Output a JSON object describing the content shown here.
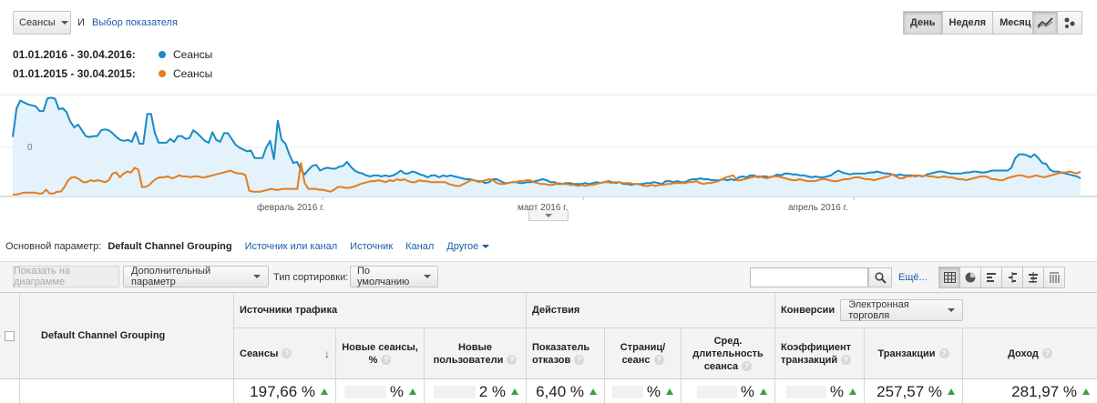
{
  "topbar": {
    "metric_select": "Сеансы",
    "and": "И",
    "choose_metric": "Выбор показателя",
    "periods": [
      "День",
      "Неделя",
      "Месяц"
    ],
    "active_period": "День",
    "view_icons": [
      "line-chart-icon",
      "motion-chart-icon"
    ]
  },
  "legend": [
    {
      "range": "01.01.2016 - 30.04.2016:",
      "label": "Сеансы",
      "color": "#1a8ac5"
    },
    {
      "range": "01.01.2015 - 30.04.2015:",
      "label": "Сеансы",
      "color": "#e47d1f"
    }
  ],
  "chart_data": {
    "type": "line",
    "y_tick_label": "0",
    "x_tick_labels": [
      "февраль 2016 г.",
      "март 2016 г.",
      "апрель 2016 г."
    ],
    "grid": true,
    "series": [
      {
        "name": "Сеансы",
        "color": "#1a8ac5",
        "fill": "#e3f2fb",
        "values": [
          62,
          92,
          100,
          98,
          96,
          95,
          94,
          89,
          89,
          102,
          103,
          102,
          91,
          92,
          88,
          78,
          72,
          75,
          69,
          63,
          62,
          63,
          63,
          69,
          70,
          69,
          66,
          62,
          59,
          58,
          59,
          57,
          67,
          55,
          55,
          86,
          86,
          66,
          56,
          56,
          56,
          60,
          57,
          63,
          63,
          60,
          61,
          69,
          66,
          62,
          58,
          56,
          67,
          59,
          57,
          66,
          66,
          60,
          54,
          51,
          49,
          47,
          48,
          40,
          40,
          40,
          51,
          58,
          39,
          79,
          59,
          55,
          44,
          35,
          36,
          28,
          23,
          28,
          32,
          33,
          27,
          29,
          30,
          29,
          29,
          31,
          32,
          36,
          31,
          27,
          25,
          24,
          22,
          21,
          22,
          22,
          21,
          22,
          21,
          22,
          24,
          27,
          24,
          24,
          26,
          25,
          23,
          22,
          20,
          22,
          22,
          20,
          22,
          21,
          22,
          21,
          20,
          19,
          18,
          18,
          17,
          16,
          16,
          14,
          15,
          18,
          18,
          16,
          14,
          14,
          15,
          15,
          14,
          14,
          15,
          15,
          16,
          17,
          18,
          17,
          15,
          15,
          13,
          13,
          14,
          14,
          13,
          13,
          13,
          14,
          13,
          14,
          15,
          14,
          15,
          16,
          15,
          14,
          15,
          13,
          13,
          12,
          13,
          13,
          13,
          14,
          14,
          15,
          14,
          13,
          16,
          16,
          15,
          16,
          15,
          15,
          17,
          18,
          18,
          19,
          18,
          18,
          17,
          17,
          17,
          18,
          17,
          18,
          17,
          20,
          21,
          20,
          22,
          22,
          20,
          21,
          21,
          20,
          21,
          23,
          22,
          24,
          24,
          23,
          23,
          22,
          22,
          21,
          20,
          21,
          20,
          20,
          21,
          22,
          25,
          27,
          25,
          24,
          23,
          24,
          24,
          24,
          24,
          25,
          25,
          26,
          25,
          24,
          24,
          23,
          22,
          23,
          22,
          22,
          22,
          21,
          22,
          21,
          23,
          24,
          25,
          26,
          26,
          25,
          24,
          24,
          24,
          24,
          25,
          25,
          26,
          26,
          25,
          25,
          26,
          27,
          27,
          27,
          27,
          27,
          30,
          40,
          44,
          44,
          43,
          41,
          44,
          40,
          35,
          34,
          28,
          26,
          26,
          25,
          24,
          23,
          22,
          21,
          19
        ]
      },
      {
        "name": "Сеансы",
        "color": "#e47d1f",
        "values": [
          2,
          2,
          3,
          4,
          4,
          4,
          4,
          3,
          3,
          7,
          3,
          3,
          5,
          5,
          10,
          17,
          20,
          20,
          18,
          15,
          15,
          17,
          16,
          17,
          16,
          15,
          17,
          24,
          25,
          20,
          24,
          26,
          25,
          30,
          28,
          10,
          10,
          12,
          16,
          19,
          20,
          20,
          21,
          19,
          20,
          22,
          21,
          21,
          20,
          21,
          21,
          20,
          20,
          21,
          22,
          23,
          24,
          25,
          26,
          27,
          25,
          24,
          24,
          22,
          6,
          5,
          5,
          5,
          6,
          7,
          8,
          7,
          7,
          8,
          8,
          8,
          8,
          8,
          35,
          14,
          8,
          8,
          8,
          7,
          7,
          6,
          5,
          7,
          10,
          10,
          9,
          9,
          10,
          11,
          13,
          14,
          15,
          16,
          16,
          17,
          16,
          15,
          17,
          16,
          18,
          17,
          18,
          16,
          15,
          15,
          17,
          16,
          16,
          15,
          15,
          15,
          15,
          15,
          13,
          12,
          11,
          11,
          13,
          15,
          17,
          17,
          15,
          16,
          17,
          18,
          17,
          14,
          13,
          13,
          14,
          15,
          15,
          16,
          16,
          17,
          17,
          15,
          14,
          13,
          13,
          12,
          12,
          13,
          14,
          13,
          13,
          12,
          12,
          11,
          12,
          11,
          12,
          12,
          13,
          14,
          15,
          15,
          14,
          15,
          15,
          14,
          14,
          14,
          13,
          13,
          12,
          11,
          11,
          12,
          11,
          12,
          12,
          13,
          13,
          14,
          14,
          14,
          14,
          15,
          15,
          16,
          14,
          13,
          14,
          14,
          15,
          16,
          18,
          20,
          21,
          22,
          17,
          17,
          18,
          19,
          20,
          21,
          21,
          20,
          19,
          20,
          21,
          21,
          20,
          19,
          18,
          17,
          17,
          18,
          17,
          16,
          16,
          16,
          17,
          18,
          18,
          17,
          16,
          16,
          17,
          18,
          18,
          19,
          20,
          20,
          19,
          18,
          18,
          17,
          18,
          19,
          20,
          21,
          23,
          21,
          19,
          19,
          21,
          21,
          22,
          22,
          21,
          22,
          21,
          21,
          20,
          20,
          21,
          20,
          20,
          19,
          18,
          18,
          17,
          18,
          19,
          20,
          21,
          21,
          20,
          18,
          18,
          17,
          17,
          19,
          20,
          21,
          22,
          22,
          21,
          20,
          21,
          22,
          21,
          20,
          21,
          22,
          23,
          24,
          25,
          25,
          26,
          25,
          24,
          26
        ]
      }
    ]
  },
  "dimension_bar": {
    "label": "Основной параметр:",
    "current": "Default Channel Grouping",
    "links": [
      "Источник или канал",
      "Источник",
      "Канал"
    ],
    "more": "Другое"
  },
  "toolbar": {
    "plot_rows": "Показать на диаграмме",
    "secondary_dim": "Дополнительный параметр",
    "sort_label": "Тип сортировки:",
    "sort_value": "По умолчанию",
    "search_value": "",
    "more_link": "Ещё...",
    "table_view_icons": [
      "data-table-icon",
      "pie-chart-icon",
      "performance-bar-icon",
      "comparison-icon",
      "term-cloud-icon",
      "pivot-icon"
    ]
  },
  "table": {
    "dim_header": "Default Channel Grouping",
    "groups": {
      "acquisition": "Источники трафика",
      "behavior": "Действия",
      "conversions": "Конверсии",
      "ecommerce_select": "Электронная торговля"
    },
    "columns": [
      {
        "label": "Сеансы",
        "value": "197,66 %",
        "sorted": true
      },
      {
        "label": "Новые сеансы, %",
        "value": "%"
      },
      {
        "label": "Новые пользователи",
        "value": "2 %"
      },
      {
        "label": "Показатель отказов",
        "value": "6,40 %"
      },
      {
        "label": "Страниц/ сеанс",
        "value": "%"
      },
      {
        "label": "Сред. длительность сеанса",
        "value": "%"
      },
      {
        "label": "Коэффициент транзакций",
        "value": "%"
      },
      {
        "label": "Транзакции",
        "value": "257,57 %"
      },
      {
        "label": "Доход",
        "value": "281,97 %"
      }
    ]
  }
}
